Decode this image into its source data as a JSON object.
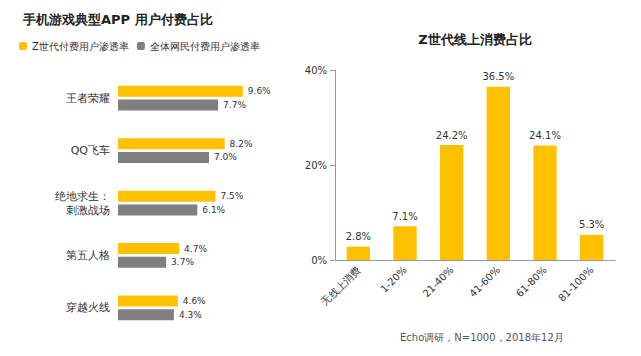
{
  "chart_data": [
    {
      "type": "bar",
      "title": "手机游戏典型APP 用户付费占比",
      "orientation": "horizontal",
      "categories": [
        "王者荣耀",
        "QQ飞车",
        "绝地求生：刺激战场",
        "第五人格",
        "穿越火线"
      ],
      "series": [
        {
          "name": "Z世代付费用户渗透率",
          "color": "#FFC000",
          "values": [
            9.6,
            8.2,
            7.5,
            4.7,
            4.6
          ],
          "value_labels": [
            "9.6%",
            "8.2%",
            "7.5%",
            "4.7%",
            "4.6%"
          ]
        },
        {
          "name": "全体网民付费用户渗透率",
          "color": "#7F7F7F",
          "values": [
            7.7,
            7.0,
            6.1,
            3.7,
            4.3
          ],
          "value_labels": [
            "7.7%",
            "7.0%",
            "6.1%",
            "3.7%",
            "4.3%"
          ]
        }
      ],
      "xlim": [
        0,
        10
      ],
      "tick_labels": "y",
      "data_labels": true,
      "legend": "top",
      "grid": false
    },
    {
      "type": "bar",
      "title": "Z世代线上消费占比",
      "categories": [
        "无线上消费",
        "1-20%",
        "21-40%",
        "41-60%",
        "61-80%",
        "81-100%"
      ],
      "values": [
        2.8,
        7.1,
        24.2,
        36.5,
        24.1,
        5.3
      ],
      "value_labels": [
        "2.8%",
        "7.1%",
        "24.2%",
        "36.5%",
        "24.1%",
        "5.3%"
      ],
      "color": "#FFC000",
      "ylim": [
        0,
        40
      ],
      "yticks": [
        {
          "value": 0,
          "label": "0%"
        },
        {
          "value": 20,
          "label": "20%"
        },
        {
          "value": 40,
          "label": "40%"
        }
      ],
      "data_labels": true,
      "grid": false,
      "annotation": "Echo调研，N=1000，2018年12月"
    }
  ]
}
